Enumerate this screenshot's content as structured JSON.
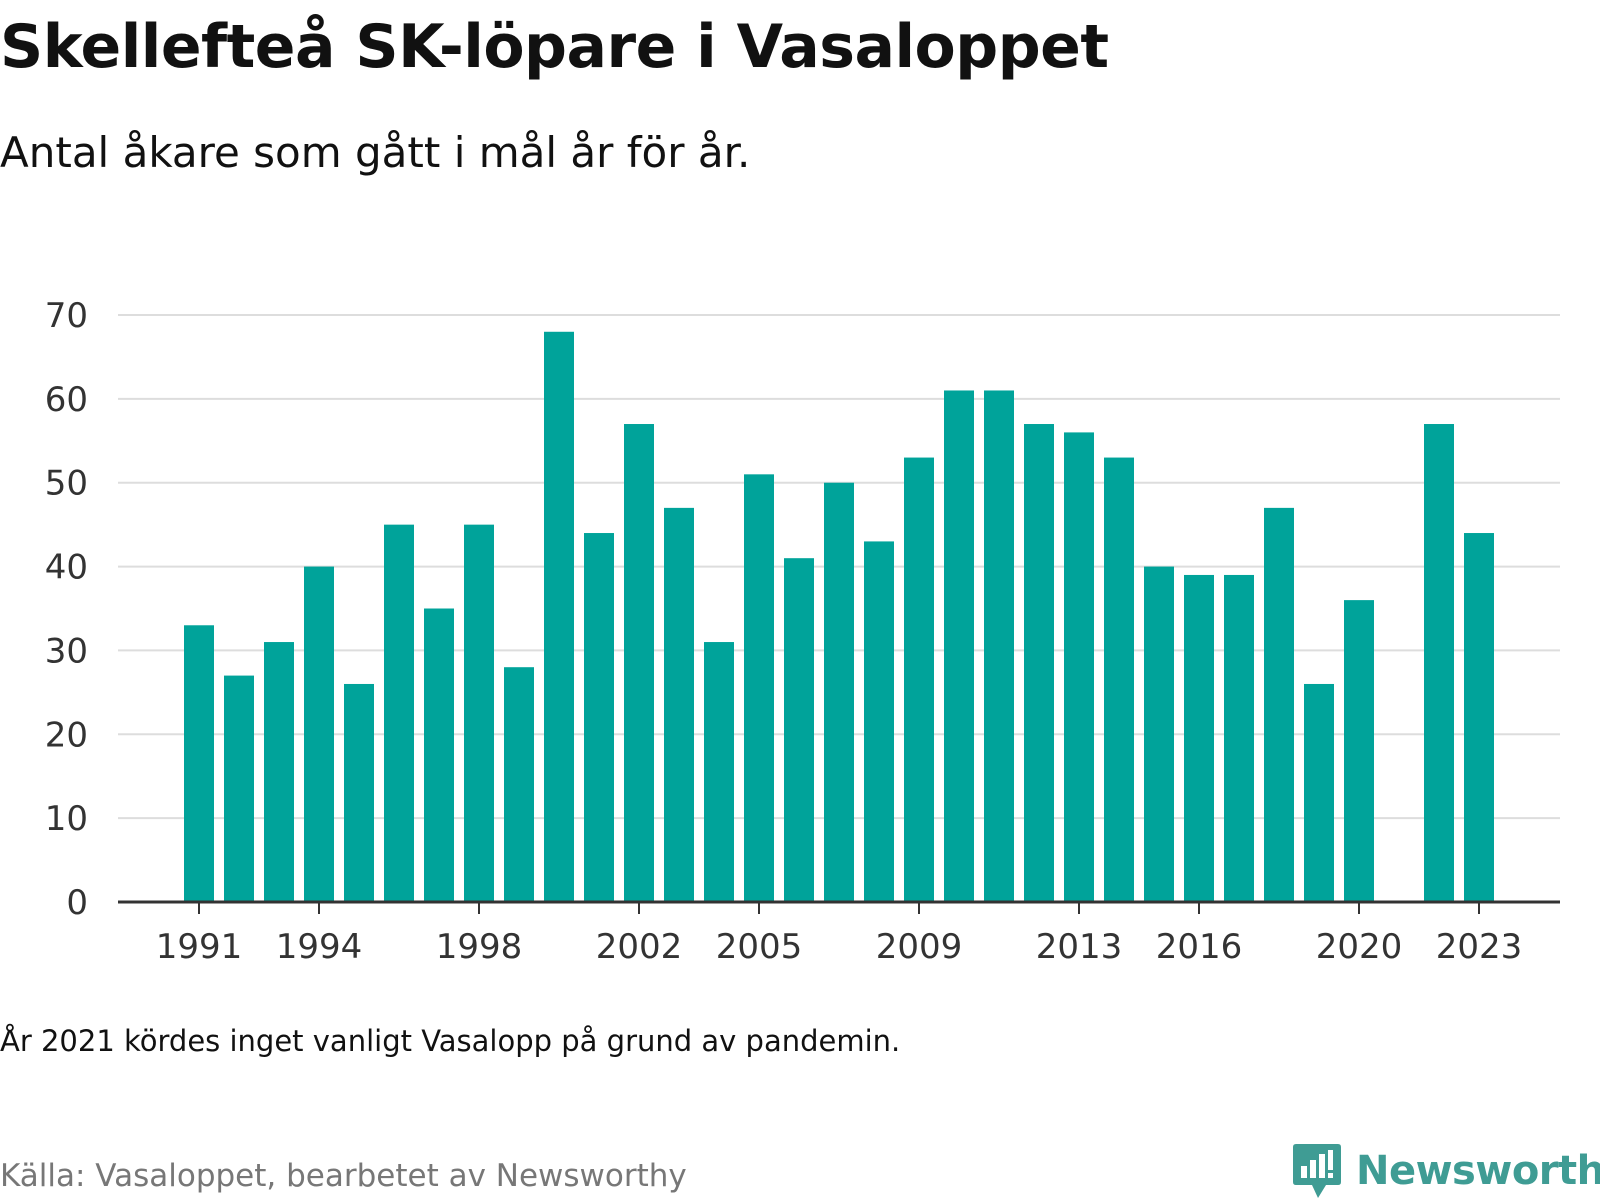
{
  "title": "Skellefteå SK-löpare i Vasaloppet",
  "subtitle": "Antal åkare som gått i mål år för år.",
  "note": "År 2021 kördes inget vanligt Vasalopp på grund av pandemin.",
  "source": "Källa: Vasaloppet, bearbetet av Newsworthy",
  "brand": {
    "name": "Newsworthy",
    "icon": "newsworthy-logo-icon",
    "color": "#3f9c94"
  },
  "colors": {
    "bar": "#00a39a",
    "grid": "#dddddd",
    "axis": "#333333"
  },
  "chart_data": {
    "type": "bar",
    "title": "",
    "xlabel": "",
    "ylabel": "",
    "ylim": [
      0,
      70
    ],
    "y_ticks": [
      0,
      10,
      20,
      30,
      40,
      50,
      60,
      70
    ],
    "x_tick_labels": [
      1991,
      1994,
      1998,
      2002,
      2005,
      2009,
      2013,
      2016,
      2020,
      2023
    ],
    "grid": true,
    "legend": "none",
    "x": [
      1991,
      1992,
      1993,
      1994,
      1995,
      1996,
      1997,
      1998,
      1999,
      2000,
      2001,
      2002,
      2003,
      2004,
      2005,
      2006,
      2007,
      2008,
      2009,
      2010,
      2011,
      2012,
      2013,
      2014,
      2015,
      2016,
      2017,
      2018,
      2019,
      2020,
      2021,
      2022,
      2023
    ],
    "values": [
      33,
      27,
      31,
      40,
      26,
      45,
      35,
      45,
      28,
      68,
      44,
      57,
      47,
      31,
      51,
      41,
      50,
      43,
      53,
      61,
      61,
      57,
      56,
      53,
      40,
      39,
      39,
      47,
      26,
      36,
      null,
      57,
      44
    ]
  }
}
